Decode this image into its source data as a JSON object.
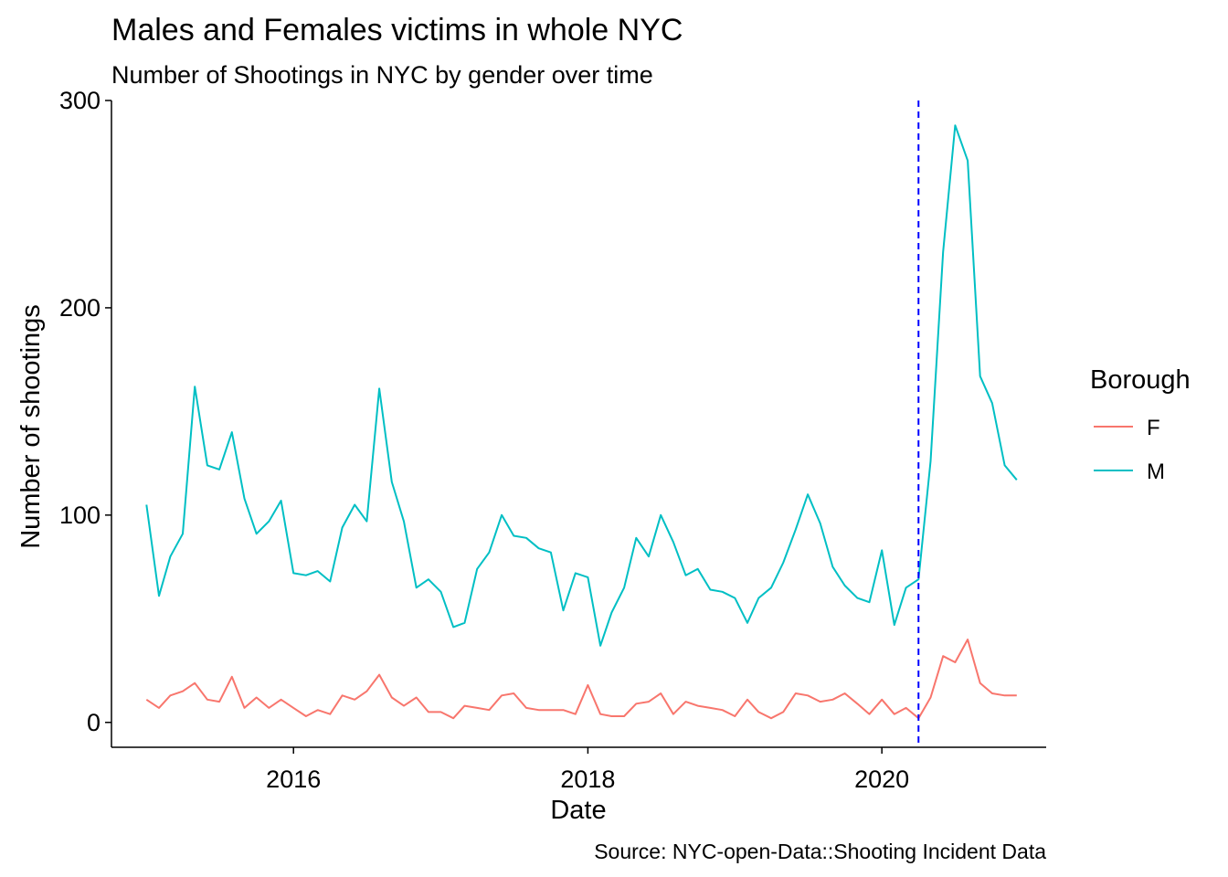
{
  "chart_data": {
    "type": "line",
    "title": "Males and Females victims in whole NYC",
    "subtitle": "Number of Shootings in NYC by gender over time",
    "xlabel": "Date",
    "ylabel": "Number of shootings",
    "caption": "Source: NYC-open-Data::Shooting Incident Data",
    "legend": {
      "title": "Borough",
      "position": "right"
    },
    "grid": false,
    "x_type": "date",
    "xlim": [
      "2014-10-06",
      "2021-02-12"
    ],
    "ylim": [
      -12,
      300
    ],
    "x_ticks": [
      {
        "value": "2016-01-01",
        "label": "2016"
      },
      {
        "value": "2018-01-01",
        "label": "2018"
      },
      {
        "value": "2020-01-01",
        "label": "2020"
      }
    ],
    "y_ticks": [
      {
        "value": 0,
        "label": "0"
      },
      {
        "value": 100,
        "label": "100"
      },
      {
        "value": 200,
        "label": "200"
      },
      {
        "value": 300,
        "label": "300"
      }
    ],
    "vline": {
      "x": "2020-04-01",
      "color": "#0000ff",
      "style": "dashed"
    },
    "x": [
      "2015-01-01",
      "2015-02-01",
      "2015-03-01",
      "2015-04-01",
      "2015-05-01",
      "2015-06-01",
      "2015-07-01",
      "2015-08-01",
      "2015-09-01",
      "2015-10-01",
      "2015-11-01",
      "2015-12-01",
      "2016-01-01",
      "2016-02-01",
      "2016-03-01",
      "2016-04-01",
      "2016-05-01",
      "2016-06-01",
      "2016-07-01",
      "2016-08-01",
      "2016-09-01",
      "2016-10-01",
      "2016-11-01",
      "2016-12-01",
      "2017-01-01",
      "2017-02-01",
      "2017-03-01",
      "2017-04-01",
      "2017-05-01",
      "2017-06-01",
      "2017-07-01",
      "2017-08-01",
      "2017-09-01",
      "2017-10-01",
      "2017-11-01",
      "2017-12-01",
      "2018-01-01",
      "2018-02-01",
      "2018-03-01",
      "2018-04-01",
      "2018-05-01",
      "2018-06-01",
      "2018-07-01",
      "2018-08-01",
      "2018-09-01",
      "2018-10-01",
      "2018-11-01",
      "2018-12-01",
      "2019-01-01",
      "2019-02-01",
      "2019-03-01",
      "2019-04-01",
      "2019-05-01",
      "2019-06-01",
      "2019-07-01",
      "2019-08-01",
      "2019-09-01",
      "2019-10-01",
      "2019-11-01",
      "2019-12-01",
      "2020-01-01",
      "2020-02-01",
      "2020-03-01",
      "2020-04-01",
      "2020-05-01",
      "2020-06-01",
      "2020-07-01",
      "2020-08-01",
      "2020-09-01",
      "2020-10-01",
      "2020-11-01",
      "2020-12-01"
    ],
    "series": [
      {
        "name": "F",
        "color": "#f8766d",
        "values": [
          11,
          7,
          13,
          15,
          19,
          11,
          10,
          22,
          7,
          12,
          7,
          11,
          7,
          3,
          6,
          4,
          13,
          11,
          15,
          23,
          12,
          8,
          12,
          5,
          5,
          2,
          8,
          7,
          6,
          13,
          14,
          7,
          6,
          6,
          6,
          4,
          18,
          4,
          3,
          3,
          9,
          10,
          14,
          4,
          10,
          8,
          7,
          6,
          3,
          11,
          5,
          2,
          5,
          14,
          13,
          10,
          11,
          14,
          9,
          4,
          11,
          4,
          7,
          2,
          12,
          32,
          29,
          40,
          19,
          14,
          13,
          13
        ]
      },
      {
        "name": "M",
        "color": "#00bfc4",
        "values": [
          105,
          61,
          80,
          91,
          162,
          124,
          122,
          140,
          108,
          91,
          97,
          107,
          72,
          71,
          73,
          68,
          94,
          105,
          97,
          161,
          116,
          97,
          65,
          69,
          63,
          46,
          48,
          74,
          82,
          100,
          90,
          89,
          84,
          82,
          54,
          72,
          70,
          37,
          53,
          65,
          89,
          80,
          100,
          87,
          71,
          74,
          64,
          63,
          60,
          48,
          60,
          65,
          77,
          93,
          110,
          96,
          75,
          66,
          60,
          58,
          83,
          47,
          65,
          69,
          126,
          227,
          288,
          271,
          167,
          154,
          124,
          117
        ]
      }
    ]
  }
}
